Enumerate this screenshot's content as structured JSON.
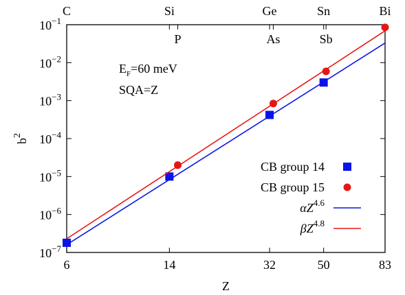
{
  "chart_data": {
    "type": "scatter",
    "xlabel": "Z",
    "ylabel": {
      "text": "b",
      "sup": "2"
    },
    "xlim": [
      6,
      83
    ],
    "ylim": [
      1e-07,
      0.1
    ],
    "log_x": true,
    "log_y": true,
    "xticks": [
      6,
      14,
      32,
      50,
      83
    ],
    "yticks": [
      {
        "value": 1e-07,
        "label": "10",
        "exponent": "−7"
      },
      {
        "value": 1e-06,
        "label": "10",
        "exponent": "−6"
      },
      {
        "value": 1e-05,
        "label": "10",
        "exponent": "−5"
      },
      {
        "value": 0.0001,
        "label": "10",
        "exponent": "−4"
      },
      {
        "value": 0.001,
        "label": "10",
        "exponent": "−3"
      },
      {
        "value": 0.01,
        "label": "10",
        "exponent": "−2"
      },
      {
        "value": 0.1,
        "label": "10",
        "exponent": "−1"
      }
    ],
    "top_ticks": [
      {
        "value": 6,
        "label": "C"
      },
      {
        "value": 14,
        "label": "Si"
      },
      {
        "value": 32,
        "label": "Ge"
      },
      {
        "value": 50,
        "label": "Sn"
      },
      {
        "value": 83,
        "label": "Bi"
      }
    ],
    "inner_labels": [
      {
        "value": 15,
        "label": "P"
      },
      {
        "value": 33,
        "label": "As"
      },
      {
        "value": 51,
        "label": "Sb"
      }
    ],
    "annotations": [
      {
        "text": "E",
        "sub": "F",
        "rest": "=60 meV"
      },
      {
        "text": "SQA=Z"
      }
    ],
    "series": [
      {
        "name": "CB group 14",
        "type": "scatter",
        "marker": "square",
        "color": "#0a14e6",
        "x": [
          6,
          14,
          32,
          50
        ],
        "values": [
          1.8e-07,
          1e-05,
          0.00042,
          0.003
        ]
      },
      {
        "name": "CB group 15",
        "type": "scatter",
        "marker": "circle",
        "color": "#e81515",
        "x": [
          15,
          33,
          51,
          83
        ],
        "values": [
          2e-05,
          0.00084,
          0.0059,
          0.085
        ]
      },
      {
        "name": "αZ",
        "exponent": 4.6,
        "type": "line",
        "color": "#0a14e6",
        "x": [
          6,
          83
        ],
        "values": [
          1.6e-07,
          0.033
        ]
      },
      {
        "name": "βZ",
        "exponent": 4.8,
        "type": "line",
        "color": "#e81515",
        "x": [
          6,
          83
        ],
        "values": [
          2.3e-07,
          0.069
        ]
      }
    ]
  }
}
